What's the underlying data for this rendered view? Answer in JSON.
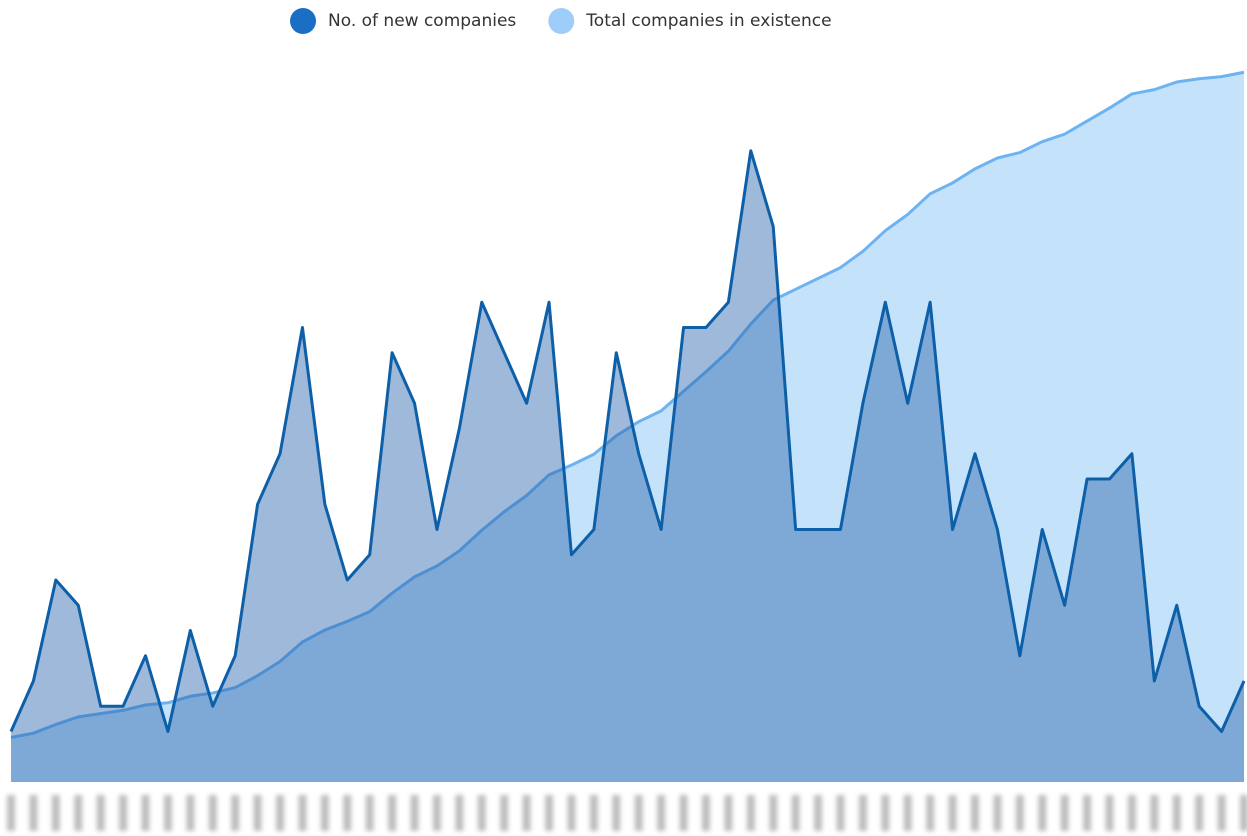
{
  "chart_data": {
    "type": "area",
    "categories": [
      null,
      null,
      null,
      null,
      null,
      null,
      null,
      null,
      null,
      null,
      null,
      null,
      null,
      null,
      null,
      null,
      null,
      null,
      null,
      null,
      null,
      null,
      null,
      null,
      null,
      null,
      null,
      null,
      null,
      null,
      null,
      null,
      null,
      null,
      null,
      null,
      null,
      null,
      null,
      null,
      null,
      null,
      null,
      null,
      null,
      null,
      null,
      null,
      null,
      null,
      null,
      null,
      null,
      null,
      null,
      null
    ],
    "series": [
      {
        "name": "No. of new companies",
        "color": "#0d5fa8",
        "fill": "rgba(40,100,170,0.45)",
        "legend_color": "#1a6fc4",
        "values": [
          2,
          4,
          8,
          7,
          3,
          3,
          5,
          2,
          6,
          3,
          5,
          11,
          13,
          18,
          11,
          8,
          9,
          17,
          15,
          10,
          14,
          19,
          17,
          15,
          19,
          9,
          10,
          17,
          13,
          10,
          18,
          18,
          19,
          25,
          22,
          10,
          10,
          10,
          15,
          19,
          15,
          19,
          10,
          13,
          10,
          5,
          10,
          7,
          12,
          12,
          13,
          4,
          7,
          3,
          2,
          4
        ]
      },
      {
        "name": "Total companies in existence",
        "color": "#6db3f2",
        "fill": "#c5e2fb",
        "legend_color": "#9fcdfa",
        "axis": "y2",
        "values": [
          41,
          45,
          53,
          60,
          63,
          66,
          71,
          73,
          79,
          82,
          87,
          98,
          111,
          129,
          140,
          148,
          157,
          174,
          189,
          199,
          213,
          232,
          249,
          264,
          283,
          292,
          302,
          319,
          332,
          342,
          360,
          378,
          397,
          422,
          444,
          454,
          464,
          474,
          489,
          508,
          523,
          542,
          552,
          565,
          575,
          580,
          590,
          597,
          609,
          621,
          634,
          638,
          645,
          648,
          650,
          654
        ]
      }
    ],
    "ylim": [
      0,
      30
    ],
    "y2lim": [
      0,
      698
    ],
    "legend": "top"
  }
}
